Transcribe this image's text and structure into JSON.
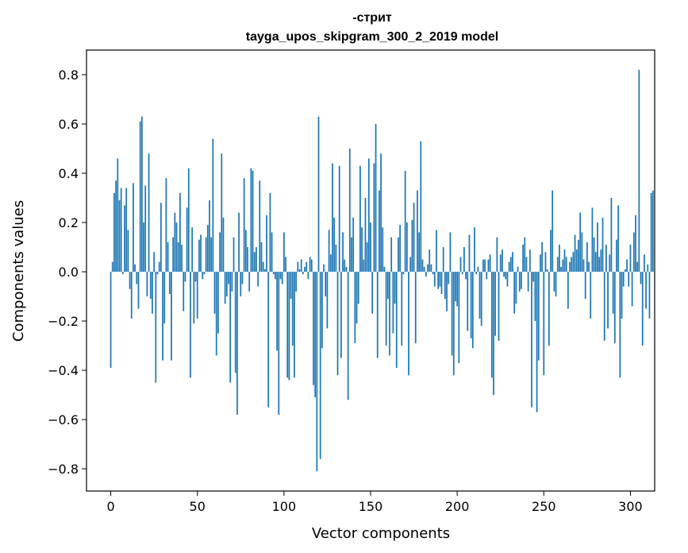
{
  "chart_data": {
    "type": "bar",
    "title_line1": "-стрит",
    "title_line2": "tayga_upos_skipgram_300_2_2019 model",
    "xlabel": "Vector components",
    "ylabel": "Components values",
    "xlim": [
      -14,
      314
    ],
    "ylim": [
      -0.89,
      0.9
    ],
    "xticks": [
      0,
      50,
      100,
      150,
      200,
      250,
      300
    ],
    "xtick_labels": [
      "0",
      "50",
      "100",
      "150",
      "200",
      "250",
      "300"
    ],
    "yticks": [
      -0.8,
      -0.6,
      -0.4,
      -0.2,
      0.0,
      0.2,
      0.4,
      0.6,
      0.8
    ],
    "ytick_labels": [
      "−0.8",
      "−0.6",
      "−0.4",
      "−0.2",
      "0.0",
      "0.2",
      "0.4",
      "0.6",
      "0.8"
    ],
    "bar_color": "#1f77b4",
    "values": [
      -0.39,
      0.04,
      0.32,
      0.37,
      0.46,
      0.29,
      0.34,
      -0.01,
      0.27,
      0.34,
      0.17,
      -0.07,
      -0.19,
      0.36,
      0.03,
      -0.05,
      -0.15,
      0.61,
      0.63,
      0.2,
      0.35,
      -0.1,
      0.48,
      -0.11,
      -0.17,
      0.08,
      -0.45,
      -0.01,
      0.04,
      0.28,
      -0.36,
      -0.21,
      0.38,
      0.12,
      -0.09,
      -0.36,
      0.14,
      0.24,
      0.2,
      0.12,
      0.32,
      0.11,
      -0.16,
      -0.04,
      0.26,
      0.42,
      -0.43,
      0.18,
      -0.21,
      -0.04,
      -0.19,
      0.13,
      0.15,
      -0.03,
      -0.01,
      0.14,
      0.19,
      0.29,
      0.14,
      0.54,
      -0.17,
      -0.34,
      -0.25,
      0.16,
      0.48,
      0.22,
      -0.13,
      -0.1,
      -0.05,
      -0.45,
      -0.08,
      0.14,
      -0.41,
      -0.58,
      0.24,
      -0.1,
      -0.05,
      0.38,
      0.17,
      0.1,
      -0.08,
      0.42,
      0.41,
      0.08,
      0.1,
      -0.06,
      0.37,
      0.12,
      0.04,
      0.01,
      0.23,
      -0.55,
      0.32,
      0.16,
      -0.01,
      -0.03,
      -0.32,
      -0.58,
      -0.03,
      -0.05,
      0.16,
      0.06,
      -0.43,
      -0.44,
      -0.11,
      -0.3,
      -0.43,
      -0.08,
      0.04,
      0.01,
      0.05,
      -0.01,
      0.02,
      0.04,
      -0.03,
      0.06,
      0.05,
      -0.46,
      -0.51,
      -0.81,
      0.63,
      -0.76,
      -0.31,
      0.03,
      -0.1,
      -0.23,
      0.17,
      0.07,
      0.44,
      0.22,
      0.11,
      -0.42,
      0.43,
      -0.35,
      0.16,
      0.05,
      0.02,
      -0.52,
      0.5,
      0.14,
      0.22,
      -0.29,
      -0.21,
      -0.13,
      0.43,
      0.18,
      0.05,
      0.3,
      0.12,
      0.46,
      0.2,
      -0.17,
      0.44,
      0.6,
      -0.35,
      0.33,
      0.48,
      0.18,
      0.02,
      -0.3,
      -0.11,
      -0.34,
      0.14,
      -0.25,
      -0.13,
      -0.39,
      0.14,
      0.19,
      -0.3,
      -0.01,
      0.41,
      0.2,
      -0.42,
      0.06,
      0.21,
      0.28,
      -0.29,
      0.33,
      0.16,
      0.53,
      0.05,
      0.02,
      -0.02,
      0.03,
      0.09,
      0.03,
      -0.01,
      -0.06,
      0.17,
      -0.07,
      -0.06,
      -0.09,
      0.1,
      -0.11,
      -0.16,
      -0.05,
      0.16,
      -0.34,
      -0.42,
      -0.12,
      -0.14,
      -0.37,
      0.06,
      -0.01,
      0.1,
      -0.03,
      -0.24,
      0.15,
      -0.27,
      -0.31,
      0.18,
      -0.01,
      0.02,
      -0.19,
      -0.22,
      0.05,
      0.05,
      -0.03,
      0.05,
      0.07,
      -0.43,
      -0.5,
      -0.26,
      0.14,
      -0.28,
      0.07,
      0.09,
      -0.02,
      -0.03,
      -0.06,
      0.04,
      0.06,
      0.08,
      -0.17,
      -0.13,
      0.02,
      -0.08,
      -0.07,
      0.11,
      0.14,
      0.06,
      -0.08,
      0.09,
      -0.55,
      -0.04,
      -0.2,
      -0.57,
      -0.36,
      0.07,
      0.12,
      -0.42,
      0.08,
      0.01,
      -0.3,
      0.17,
      0.33,
      -0.08,
      -0.1,
      0.06,
      0.11,
      0.02,
      0.05,
      0.09,
      0.06,
      -0.15,
      0.04,
      0.06,
      0.08,
      0.15,
      0.09,
      0.13,
      0.24,
      0.16,
      0.05,
      -0.11,
      0.12,
      0.04,
      -0.19,
      0.26,
      0.14,
      0.08,
      0.2,
      0.06,
      0.09,
      0.22,
      -0.28,
      0.11,
      -0.23,
      0.07,
      0.3,
      -0.17,
      -0.29,
      0.13,
      0.27,
      -0.43,
      -0.19,
      -0.06,
      0.01,
      0.05,
      -0.06,
      0.11,
      -0.14,
      0.16,
      0.23,
      0.04,
      0.82,
      -0.05,
      -0.3,
      0.07,
      -0.15,
      0.03,
      -0.19,
      0.32,
      0.33
    ]
  }
}
